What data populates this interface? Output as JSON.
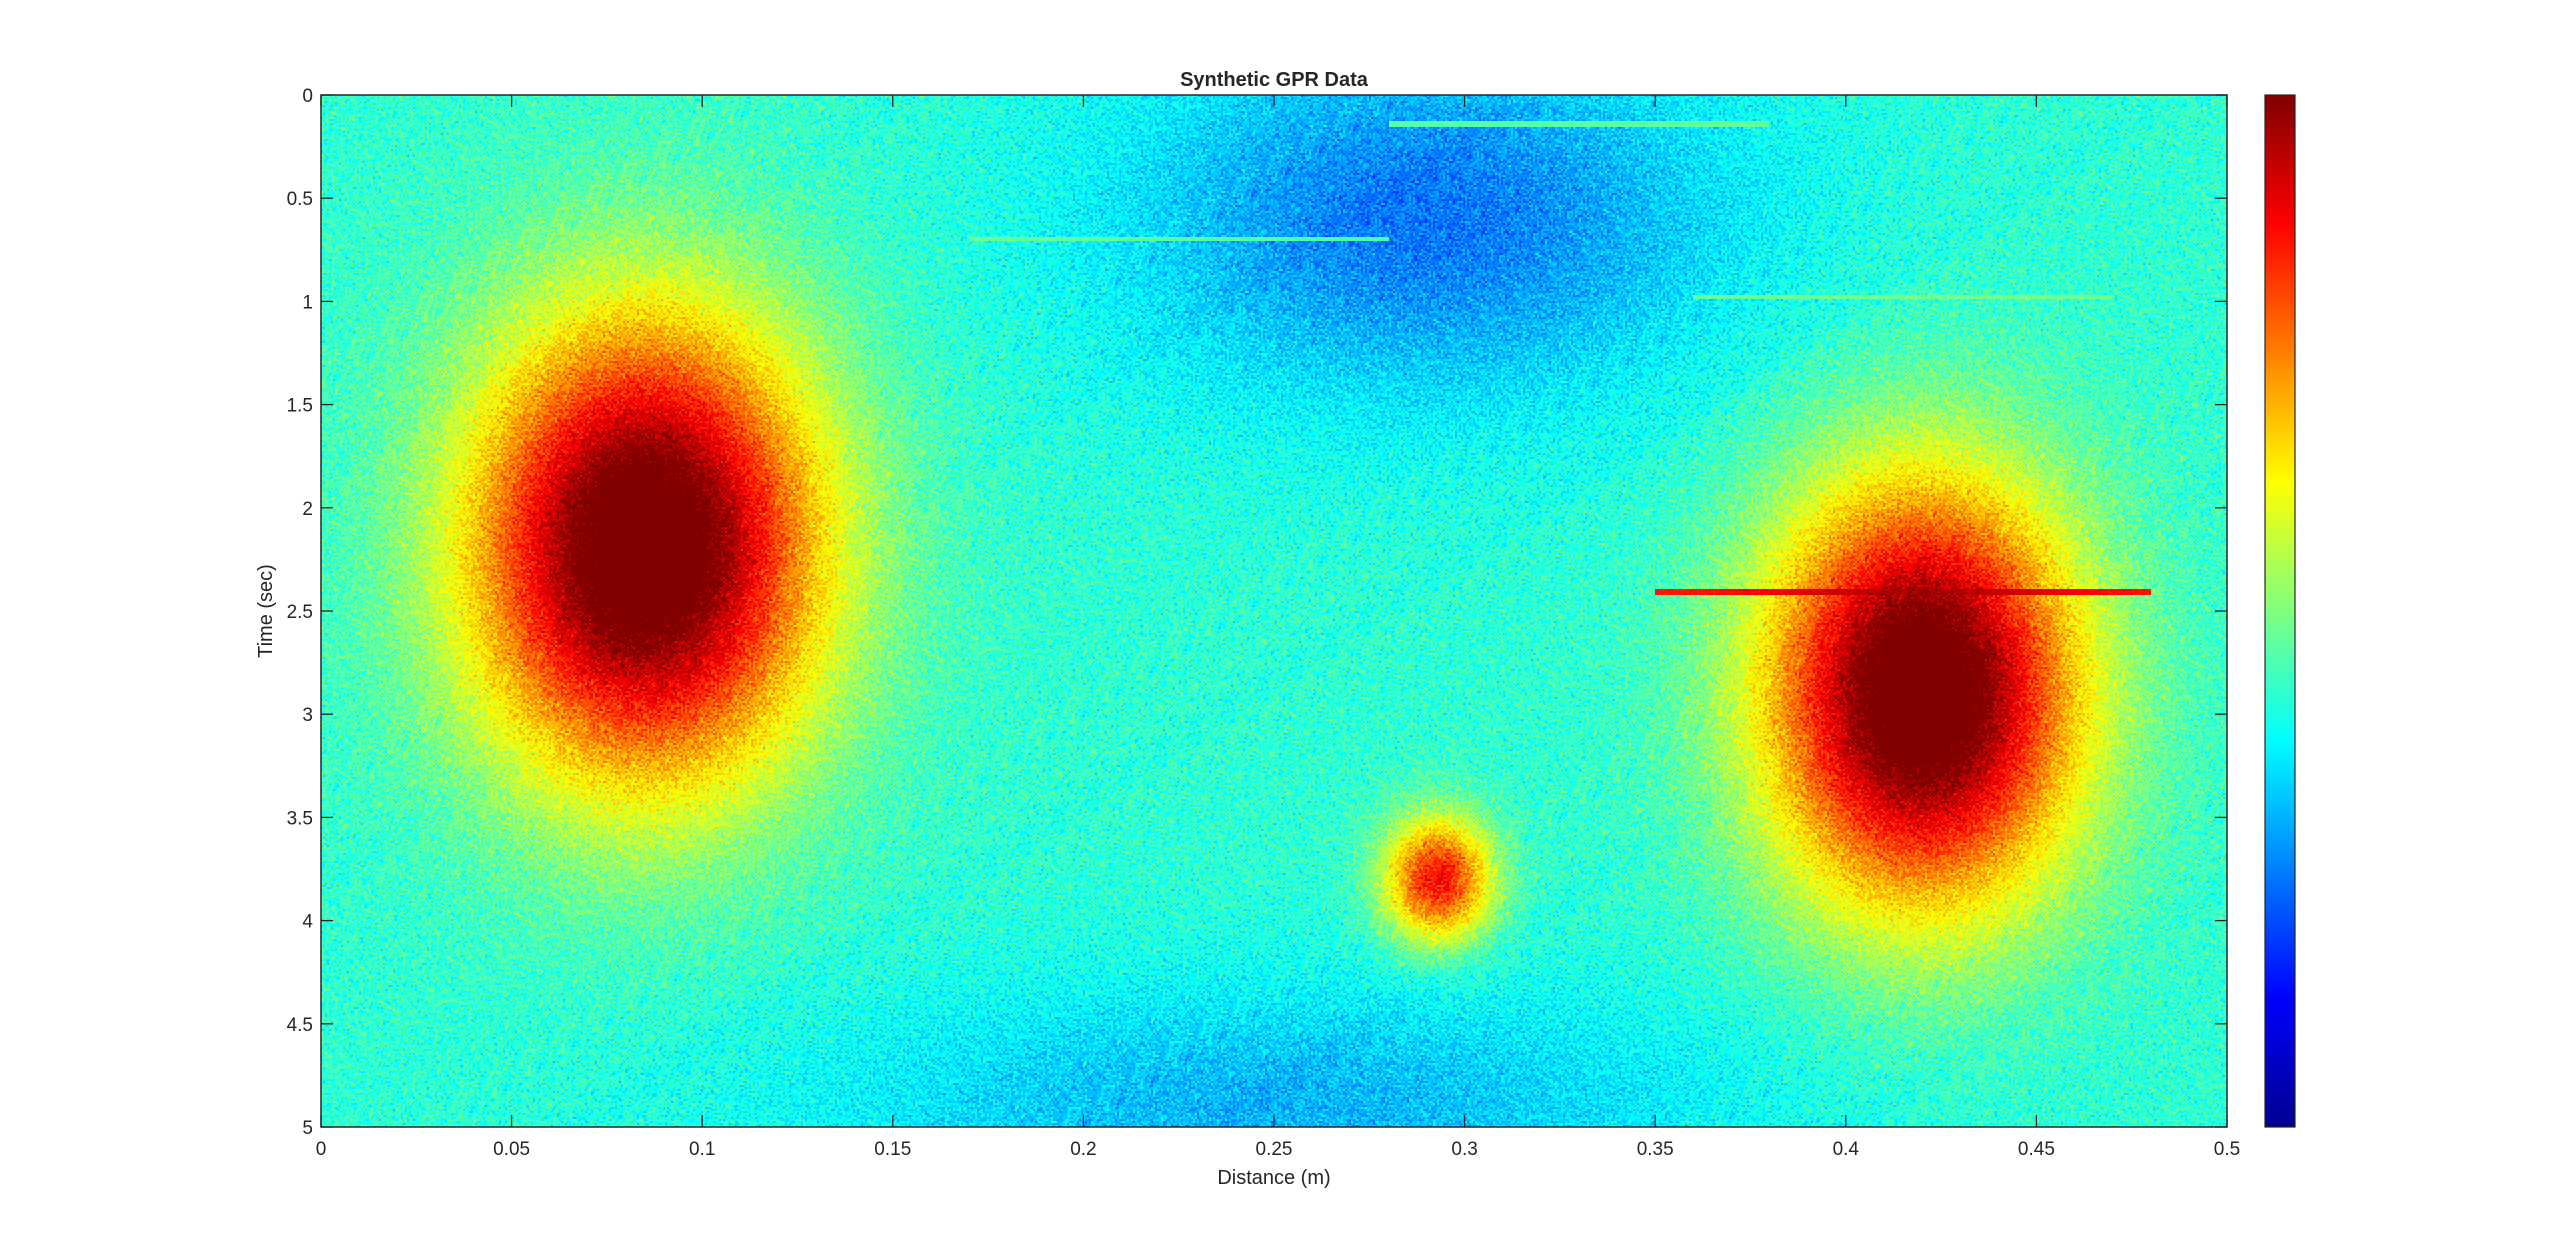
{
  "chart_data": {
    "type": "heatmap",
    "title": "Synthetic GPR Data",
    "xlabel": "Distance (m)",
    "ylabel": "Time (sec)",
    "xlim": [
      0,
      0.5
    ],
    "ylim": [
      0,
      5
    ],
    "y_reversed": true,
    "xticks": [
      0,
      0.05,
      0.1,
      0.15,
      0.2,
      0.25,
      0.3,
      0.35,
      0.4,
      0.45,
      0.5
    ],
    "xtick_labels": [
      "0",
      "0.05",
      "0.1",
      "0.15",
      "0.2",
      "0.25",
      "0.3",
      "0.35",
      "0.4",
      "0.45",
      "0.5"
    ],
    "yticks": [
      0,
      0.5,
      1,
      1.5,
      2,
      2.5,
      3,
      3.5,
      4,
      4.5,
      5
    ],
    "ytick_labels": [
      "0",
      "0.5",
      "1",
      "1.5",
      "2",
      "2.5",
      "3",
      "3.5",
      "4",
      "4.5",
      "5"
    ],
    "colormap": "jet",
    "colorbar": true,
    "anomalies": [
      {
        "x": 0.085,
        "y": 2.2,
        "sx": 0.045,
        "sy": 1.1,
        "amplitude": 0.7
      },
      {
        "x": 0.42,
        "y": 2.9,
        "sx": 0.04,
        "sy": 1.0,
        "amplitude": 0.7
      },
      {
        "x": 0.293,
        "y": 3.8,
        "sx": 0.014,
        "sy": 0.3,
        "amplitude": 0.45
      }
    ],
    "low_zones": [
      {
        "x": 0.29,
        "y": 0.6,
        "sx": 0.08,
        "sy": 0.9,
        "amplitude": -0.18
      },
      {
        "x": 0.25,
        "y": 4.9,
        "sx": 0.12,
        "sy": 0.6,
        "amplitude": -0.12
      }
    ],
    "reflector_lines": [
      {
        "y": 0.14,
        "x_from": 0.28,
        "x_to": 0.38,
        "level": 0.5
      },
      {
        "y": 0.7,
        "x_from": 0.17,
        "x_to": 0.28,
        "level": 0.5
      },
      {
        "y": 0.98,
        "x_from": 0.36,
        "x_to": 0.47,
        "level": 0.5
      },
      {
        "y": 2.41,
        "x_from": 0.35,
        "x_to": 0.48,
        "level": 0.95
      }
    ]
  }
}
